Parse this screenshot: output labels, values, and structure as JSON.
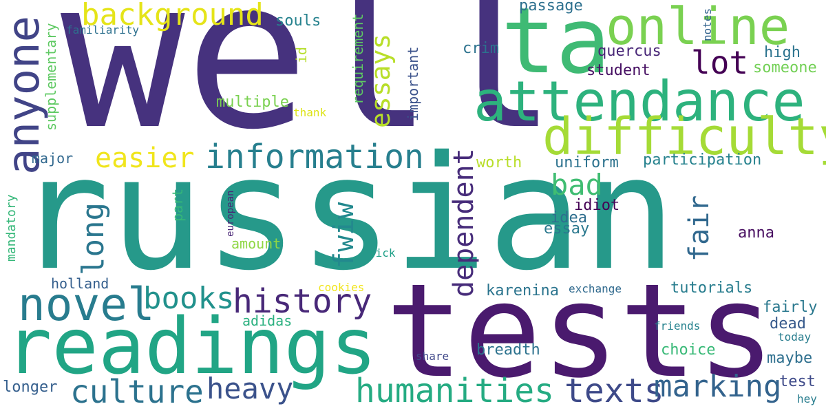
{
  "words": [
    {
      "id": "well",
      "text": "well"
    },
    {
      "id": "russian",
      "text": "russian"
    },
    {
      "id": "tests",
      "text": "tests"
    },
    {
      "id": "ta",
      "text": "ta"
    },
    {
      "id": "reading",
      "text": "readings"
    },
    {
      "id": "attendance",
      "text": "attendance"
    },
    {
      "id": "online",
      "text": "online"
    },
    {
      "id": "difficulty",
      "text": "difficulty"
    },
    {
      "id": "anyone",
      "text": "anyone"
    },
    {
      "id": "novel",
      "text": "novel"
    },
    {
      "id": "information",
      "text": "information"
    },
    {
      "id": "background",
      "text": "background"
    },
    {
      "id": "culture",
      "text": "culture"
    },
    {
      "id": "history",
      "text": "history"
    },
    {
      "id": "humanities",
      "text": "humanities"
    },
    {
      "id": "texts",
      "text": "texts"
    },
    {
      "id": "marking",
      "text": "marking"
    },
    {
      "id": "heavy",
      "text": "heavy"
    },
    {
      "id": "books",
      "text": "books"
    },
    {
      "id": "easier",
      "text": "easier"
    },
    {
      "id": "essays",
      "text": "essays"
    },
    {
      "id": "lot",
      "text": "lot"
    },
    {
      "id": "long",
      "text": "long"
    },
    {
      "id": "fwiw",
      "text": "fwiw"
    },
    {
      "id": "dependent",
      "text": "dependent"
    },
    {
      "id": "bad",
      "text": "bad"
    },
    {
      "id": "fair",
      "text": "fair"
    },
    {
      "id": "quercus",
      "text": "quercus"
    },
    {
      "id": "student",
      "text": "student"
    },
    {
      "id": "high",
      "text": "high"
    },
    {
      "id": "someone",
      "text": "someone"
    },
    {
      "id": "crim",
      "text": "crim"
    },
    {
      "id": "passage",
      "text": "passage"
    },
    {
      "id": "souls",
      "text": "souls"
    },
    {
      "id": "familiarity",
      "text": "familiarity"
    },
    {
      "id": "supplementary",
      "text": "supplementary"
    },
    {
      "id": "multiple",
      "text": "multiple"
    },
    {
      "id": "thank",
      "text": "thank"
    },
    {
      "id": "requirement",
      "text": "requirement"
    },
    {
      "id": "id",
      "text": "id"
    },
    {
      "id": "important",
      "text": "important"
    },
    {
      "id": "notes",
      "text": "notes"
    },
    {
      "id": "major",
      "text": "major"
    },
    {
      "id": "worth",
      "text": "worth"
    },
    {
      "id": "uniform",
      "text": "uniform"
    },
    {
      "id": "participation",
      "text": "participation"
    },
    {
      "id": "idiot",
      "text": "idiot"
    },
    {
      "id": "idea",
      "text": "idea"
    },
    {
      "id": "essay",
      "text": "essay"
    },
    {
      "id": "anna",
      "text": "anna"
    },
    {
      "id": "mandatory",
      "text": "mandatory"
    },
    {
      "id": "part",
      "text": "part"
    },
    {
      "id": "european",
      "text": "european"
    },
    {
      "id": "amount",
      "text": "amount"
    },
    {
      "id": "sick",
      "text": "sick"
    },
    {
      "id": "holland",
      "text": "holland"
    },
    {
      "id": "cookies",
      "text": "cookies"
    },
    {
      "id": "karenina",
      "text": "karenina"
    },
    {
      "id": "exchange",
      "text": "exchange"
    },
    {
      "id": "tutorials",
      "text": "tutorials"
    },
    {
      "id": "fairly",
      "text": "fairly"
    },
    {
      "id": "dead",
      "text": "dead"
    },
    {
      "id": "friends",
      "text": "friends"
    },
    {
      "id": "today",
      "text": "today"
    },
    {
      "id": "adidas",
      "text": "adidas"
    },
    {
      "id": "breadth",
      "text": "breadth"
    },
    {
      "id": "choice",
      "text": "choice"
    },
    {
      "id": "maybe",
      "text": "maybe"
    },
    {
      "id": "share",
      "text": "share"
    },
    {
      "id": "test",
      "text": "test"
    },
    {
      "id": "hey",
      "text": "hey"
    },
    {
      "id": "longer",
      "text": "longer"
    }
  ],
  "colors": {
    "background": "#ffffff",
    "palette": [
      "#440154",
      "#46327e",
      "#365c8d",
      "#277f8e",
      "#1fa187",
      "#4ac16d",
      "#a0da39",
      "#fde725"
    ]
  }
}
